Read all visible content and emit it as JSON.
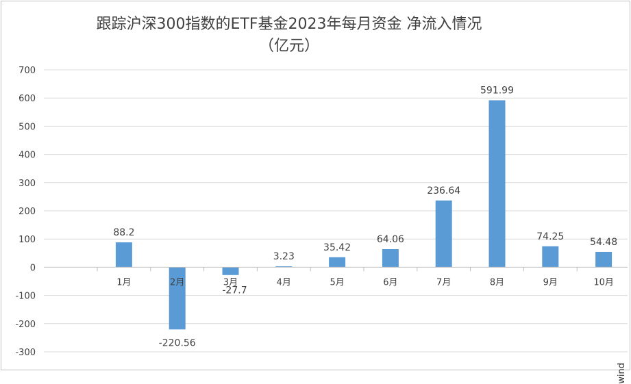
{
  "chart_data": {
    "type": "bar",
    "title_line1": "跟踪沪深300指数的ETF基金2023年每月资金 净流入情况",
    "title_line2": "（亿元）",
    "categories": [
      "1月",
      "2月",
      "3月",
      "4月",
      "5月",
      "6月",
      "7月",
      "8月",
      "9月",
      "10月"
    ],
    "values": [
      88.2,
      -220.56,
      -27.7,
      3.23,
      35.42,
      64.06,
      236.64,
      591.99,
      74.25,
      54.48
    ],
    "value_labels": [
      "88.2",
      "-220.56",
      "-27.7",
      "3.23",
      "35.42",
      "64.06",
      "236.64",
      "591.99",
      "74.25",
      "54.48"
    ],
    "ylim": [
      -300,
      700
    ],
    "yticks": [
      700,
      600,
      500,
      400,
      300,
      200,
      100,
      0,
      -100,
      -200,
      -300
    ],
    "ytick_labels": [
      "700",
      "600",
      "500",
      "400",
      "300",
      "200",
      "100",
      "0",
      "-100",
      "-200",
      "-300"
    ],
    "xlabel": "",
    "ylabel": "",
    "grid": true,
    "legend": "none",
    "bar_color": "#5b9bd5",
    "gridline_color": "#d9d9d9",
    "text_color": "#404040"
  },
  "watermark": "wind"
}
